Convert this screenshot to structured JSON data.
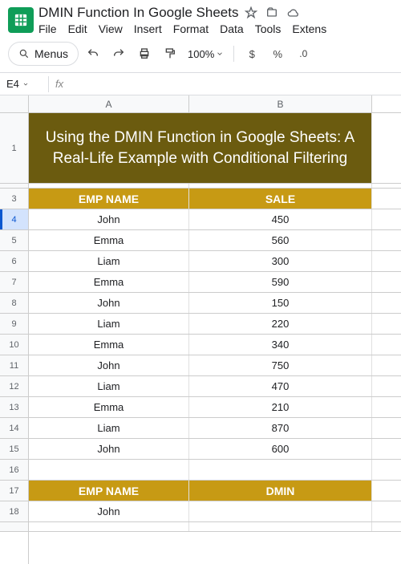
{
  "doc": {
    "title": "DMIN Function In Google Sheets"
  },
  "menus": {
    "file": "File",
    "edit": "Edit",
    "view": "View",
    "insert": "Insert",
    "format": "Format",
    "data": "Data",
    "tools": "Tools",
    "extensions": "Extens"
  },
  "toolbar": {
    "menus_label": "Menus",
    "zoom": "100%",
    "dollar": "$",
    "percent": "%",
    "decimal": ".0"
  },
  "namebox": {
    "cell": "E4",
    "fx": "fx"
  },
  "columns": {
    "A": "A",
    "B": "B",
    "widthA": 200,
    "widthB": 228
  },
  "title_cell": "Using the DMIN Function in Google Sheets: A Real-Life Example with Conditional Filtering",
  "headers1": {
    "a": "EMP NAME",
    "b": "SALE"
  },
  "rows": [
    {
      "n": "4",
      "a": "John",
      "b": "450"
    },
    {
      "n": "5",
      "a": "Emma",
      "b": "560"
    },
    {
      "n": "6",
      "a": "Liam",
      "b": "300"
    },
    {
      "n": "7",
      "a": "Emma",
      "b": "590"
    },
    {
      "n": "8",
      "a": "John",
      "b": "150"
    },
    {
      "n": "9",
      "a": "Liam",
      "b": "220"
    },
    {
      "n": "10",
      "a": "Emma",
      "b": "340"
    },
    {
      "n": "11",
      "a": "John",
      "b": "750"
    },
    {
      "n": "12",
      "a": "Liam",
      "b": "470"
    },
    {
      "n": "13",
      "a": "Emma",
      "b": "210"
    },
    {
      "n": "14",
      "a": "Liam",
      "b": "870"
    },
    {
      "n": "15",
      "a": "John",
      "b": "600"
    }
  ],
  "row16": "16",
  "headers2": {
    "n": "17",
    "a": "EMP NAME",
    "b": "DMIN"
  },
  "row18": {
    "n": "18",
    "a": "John",
    "b": ""
  },
  "colors": {
    "title_bg": "#6b5b0f",
    "title_fg": "#ffffff",
    "hdr_bg": "#c79a14",
    "hdr_fg": "#ffffff",
    "accent": "#0b57d0"
  }
}
